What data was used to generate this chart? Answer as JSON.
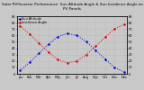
{
  "title": "Solar PV/Inverter Performance  Sun Altitude Angle & Sun Incidence Angle on PV Panels",
  "x_labels": [
    "Jan",
    "Feb",
    "Mar",
    "Apr",
    "May",
    "Jun",
    "Jul",
    "Aug",
    "Sep",
    "Oct",
    "Nov",
    "Dec"
  ],
  "x_values": [
    0,
    1,
    2,
    3,
    4,
    5,
    6,
    7,
    8,
    9,
    10,
    11
  ],
  "sun_altitude": [
    5,
    18,
    32,
    46,
    58,
    63,
    60,
    50,
    37,
    23,
    10,
    3
  ],
  "sun_incidence": [
    75,
    62,
    48,
    34,
    22,
    17,
    20,
    30,
    43,
    57,
    70,
    77
  ],
  "altitude_color": "#0000dd",
  "incidence_color": "#dd0000",
  "background_color": "#c8c8c8",
  "grid_color": "#aaaaaa",
  "ylim": [
    0,
    90
  ],
  "yticks": [
    0,
    10,
    20,
    30,
    40,
    50,
    60,
    70,
    80,
    90
  ],
  "legend_altitude": "Sun Altitude",
  "legend_incidence": "Incidence Angle",
  "title_fontsize": 3.0,
  "tick_fontsize": 2.5
}
